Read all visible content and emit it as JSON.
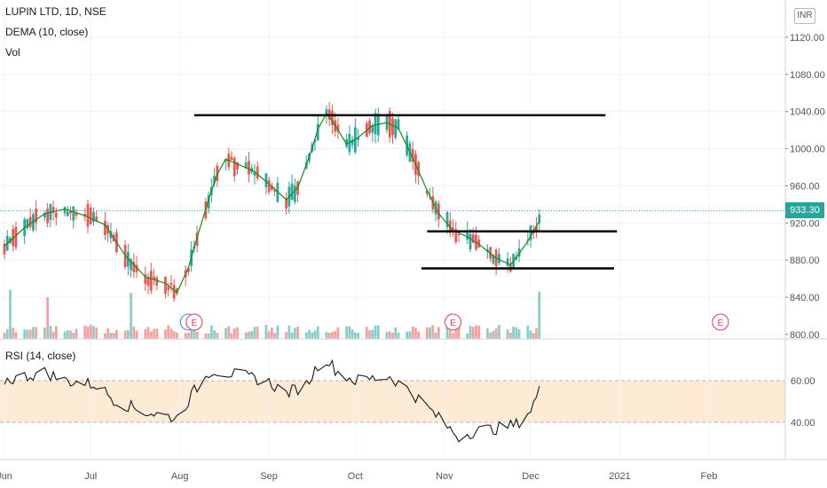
{
  "header": {
    "title": "LUPIN LTD, 1D, NSE",
    "indicator": "DEMA (10, close)",
    "volume_label": "Vol",
    "rsi_label": "RSI (14, close)",
    "currency": "INR",
    "last_price": "933.30"
  },
  "colors": {
    "up": "#26a69a",
    "down": "#ef5350",
    "dema": "#138f13",
    "rsi_band": "#fdebd6",
    "last_price": "#26a69a",
    "trendline": "#000000"
  },
  "chart_data": [
    {
      "type": "candlestick",
      "title": "LUPIN LTD, 1D, NSE",
      "ylim": [
        800,
        1140
      ],
      "y_ticks": [
        "1120.00",
        "1080.00",
        "1040.00",
        "1000.00",
        "960.00",
        "920.00",
        "880.00",
        "840.00",
        "800.00"
      ],
      "x_ticks": [
        "Jun",
        "Jul",
        "Aug",
        "Sep",
        "Oct",
        "Nov",
        "Dec",
        "2021",
        "Feb"
      ],
      "x_range": [
        "2020-06-01",
        "2021-02-26"
      ],
      "last_price": 933.3,
      "event_markers": [
        {
          "label": "D",
          "date": "2020-08-04"
        },
        {
          "label": "E",
          "date": "2020-08-06"
        },
        {
          "label": "E",
          "date": "2020-11-04"
        },
        {
          "label": "E",
          "date": "2021-02-05"
        }
      ],
      "trendlines": [
        {
          "from": [
            "2020-08-06",
            1036
          ],
          "to": [
            "2020-12-27",
            1036
          ]
        },
        {
          "from": [
            "2020-10-26",
            911
          ],
          "to": [
            "2020-12-31",
            911
          ]
        },
        {
          "from": [
            "2020-10-24",
            871
          ],
          "to": [
            "2020-12-30",
            871
          ]
        }
      ],
      "dema_anchors": [
        [
          "2020-06-01",
          895
        ],
        [
          "2020-06-08",
          915
        ],
        [
          "2020-06-15",
          930
        ],
        [
          "2020-06-22",
          935
        ],
        [
          "2020-06-29",
          928
        ],
        [
          "2020-07-06",
          918
        ],
        [
          "2020-07-13",
          885
        ],
        [
          "2020-07-20",
          862
        ],
        [
          "2020-07-27",
          855
        ],
        [
          "2020-07-31",
          845
        ],
        [
          "2020-08-04",
          872
        ],
        [
          "2020-08-08",
          915
        ],
        [
          "2020-08-12",
          955
        ],
        [
          "2020-08-16",
          990
        ],
        [
          "2020-08-20",
          985
        ],
        [
          "2020-08-27",
          975
        ],
        [
          "2020-09-01",
          962
        ],
        [
          "2020-09-07",
          945
        ],
        [
          "2020-09-11",
          958
        ],
        [
          "2020-09-16",
          1000
        ],
        [
          "2020-09-20",
          1042
        ],
        [
          "2020-09-23",
          1030
        ],
        [
          "2020-09-28",
          1005
        ],
        [
          "2020-10-02",
          1012
        ],
        [
          "2020-10-07",
          1025
        ],
        [
          "2020-10-12",
          1028
        ],
        [
          "2020-10-16",
          1022
        ],
        [
          "2020-10-21",
          990
        ],
        [
          "2020-10-26",
          955
        ],
        [
          "2020-10-30",
          930
        ],
        [
          "2020-11-04",
          912
        ],
        [
          "2020-11-09",
          905
        ],
        [
          "2020-11-14",
          895
        ],
        [
          "2020-11-19",
          882
        ],
        [
          "2020-11-24",
          875
        ],
        [
          "2020-11-29",
          895
        ],
        [
          "2020-12-04",
          922
        ]
      ],
      "volume": {
        "max_height_fraction": 1.0
      }
    },
    {
      "type": "line",
      "title": "RSI (14, close)",
      "ylim": [
        20,
        80
      ],
      "y_ticks": [
        "60.00",
        "40.00"
      ],
      "band": [
        40,
        60
      ],
      "anchors": [
        [
          "2020-06-01",
          60
        ],
        [
          "2020-06-08",
          62
        ],
        [
          "2020-06-15",
          64
        ],
        [
          "2020-06-22",
          60
        ],
        [
          "2020-07-03",
          58
        ],
        [
          "2020-07-10",
          50
        ],
        [
          "2020-07-20",
          45
        ],
        [
          "2020-07-31",
          42
        ],
        [
          "2020-08-06",
          55
        ],
        [
          "2020-08-12",
          65
        ],
        [
          "2020-08-20",
          63
        ],
        [
          "2020-08-31",
          60
        ],
        [
          "2020-09-07",
          54
        ],
        [
          "2020-09-14",
          58
        ],
        [
          "2020-09-20",
          72
        ],
        [
          "2020-09-25",
          64
        ],
        [
          "2020-10-01",
          60
        ],
        [
          "2020-10-07",
          61
        ],
        [
          "2020-10-13",
          62
        ],
        [
          "2020-10-20",
          55
        ],
        [
          "2020-10-27",
          46
        ],
        [
          "2020-11-02",
          38
        ],
        [
          "2020-11-06",
          33
        ],
        [
          "2020-11-12",
          36
        ],
        [
          "2020-11-19",
          37
        ],
        [
          "2020-11-26",
          39
        ],
        [
          "2020-12-01",
          46
        ],
        [
          "2020-12-04",
          55
        ]
      ]
    }
  ]
}
